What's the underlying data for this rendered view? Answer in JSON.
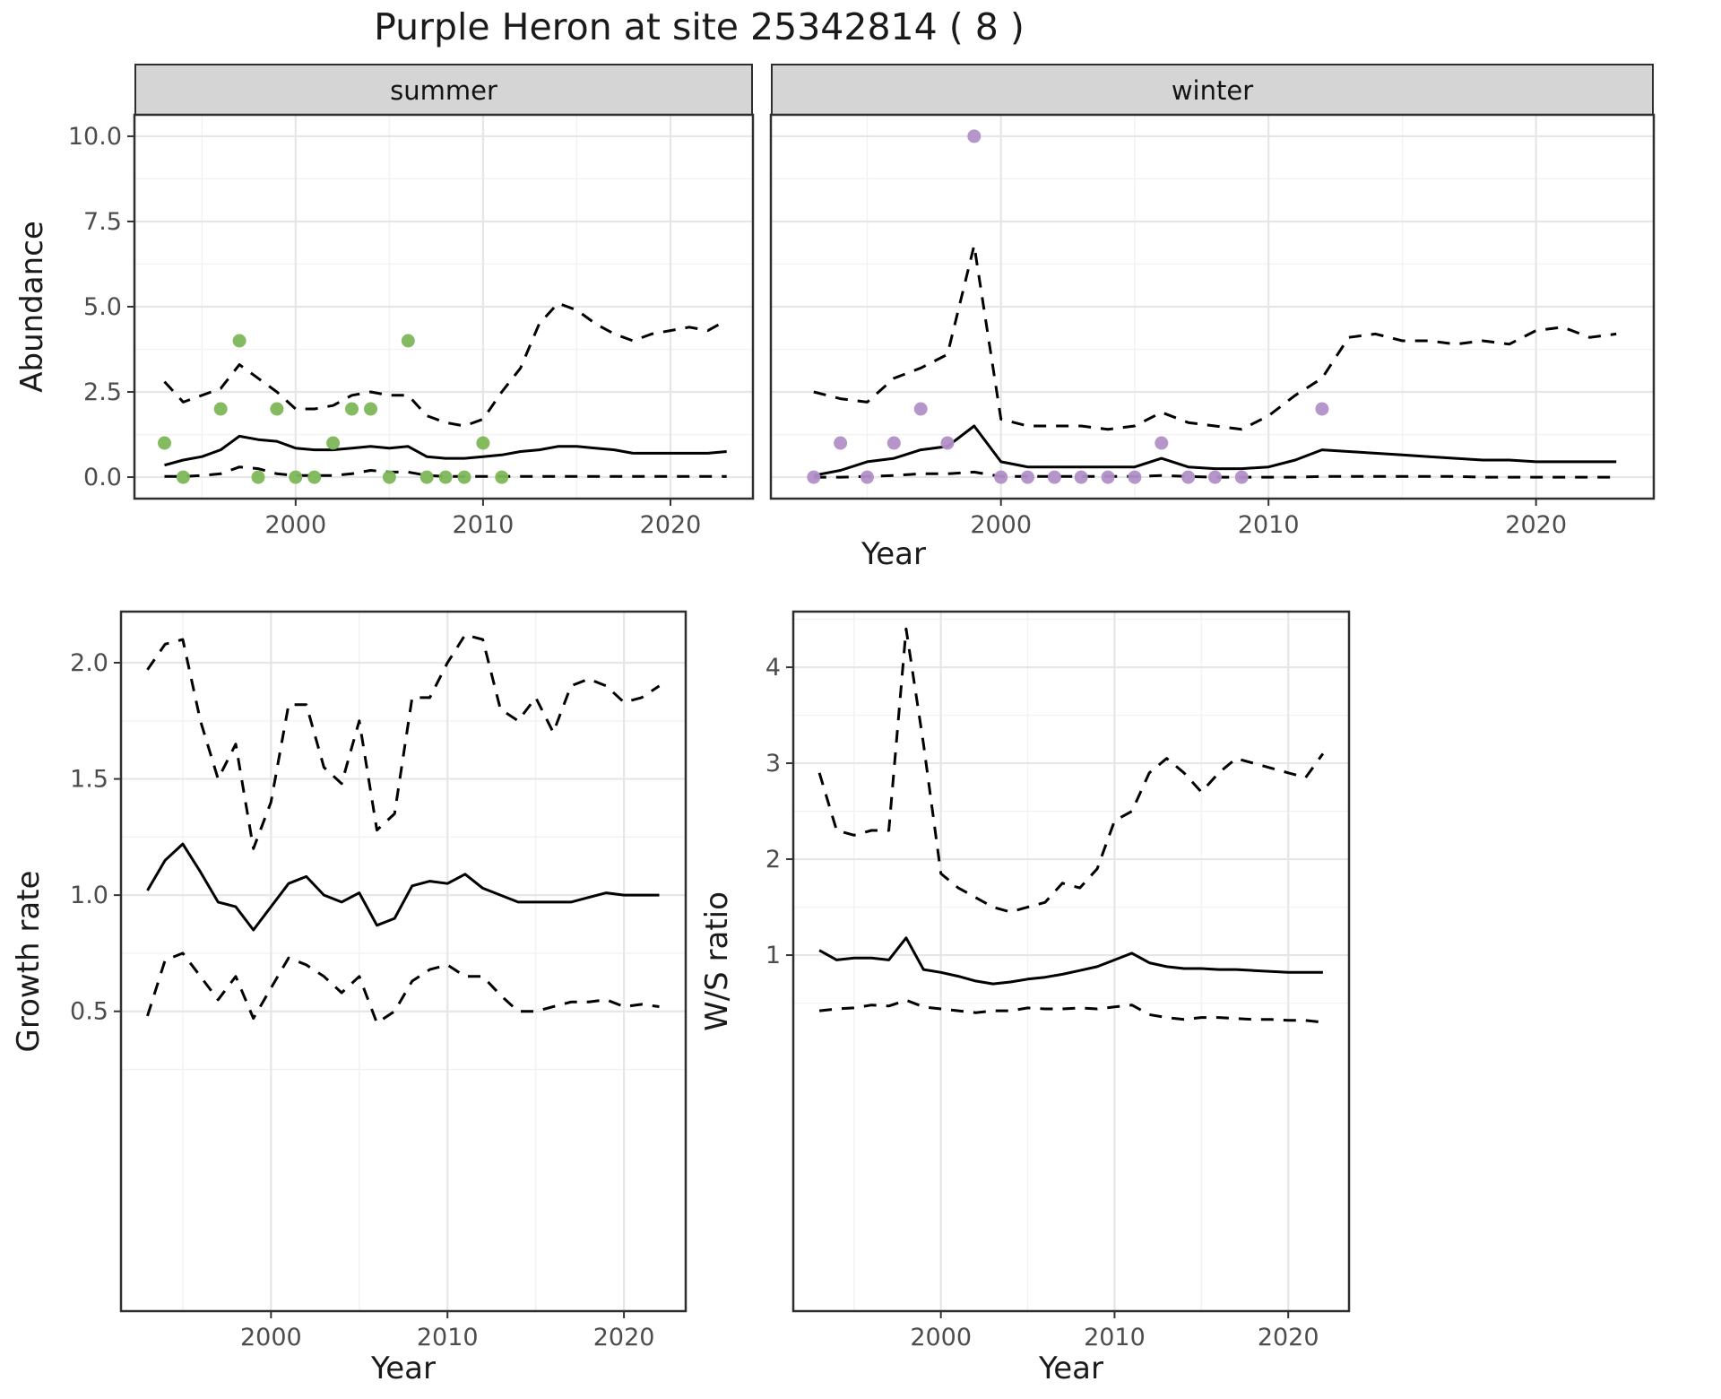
{
  "title": "Purple Heron at site 25342814 ( 8 )",
  "facets": [
    "summer",
    "winter"
  ],
  "axes": {
    "abundance_y": "Abundance",
    "growth_y": "Growth rate",
    "ratio_y": "W/S ratio",
    "year": "Year"
  },
  "colors": {
    "line": "#000000",
    "summer_points": "#7db757",
    "winter_points": "#b18fc7",
    "strip_bg": "#d5d5d5",
    "panel_border": "#2e2e2e",
    "grid_major": "#e6e6e6",
    "grid_minor": "#f2f2f2",
    "axis_text": "#4d4d4d"
  },
  "chart_data": [
    {
      "id": "abundance-summer",
      "type": "line",
      "facet": "summer",
      "xlabel": "Year",
      "ylabel": "Abundance",
      "xlim": [
        1991.4,
        2024.4
      ],
      "ylim": [
        -0.63,
        10.63
      ],
      "xticks": [
        2000,
        2010,
        2020
      ],
      "xtick_labels": [
        "2000",
        "2010",
        "2020"
      ],
      "yticks": [
        0,
        2.5,
        5,
        7.5,
        10
      ],
      "ytick_labels": [
        "0.0",
        "2.5",
        "5.0",
        "7.5",
        "10.0"
      ],
      "years": [
        1993,
        1994,
        1995,
        1996,
        1997,
        1998,
        1999,
        2000,
        2001,
        2002,
        2003,
        2004,
        2005,
        2006,
        2007,
        2008,
        2009,
        2010,
        2011,
        2012,
        2013,
        2014,
        2015,
        2016,
        2017,
        2018,
        2019,
        2020,
        2021,
        2022,
        2023
      ],
      "series": [
        {
          "name": "median",
          "style": "solid",
          "values": [
            0.35,
            0.5,
            0.6,
            0.8,
            1.2,
            1.1,
            1.05,
            0.85,
            0.8,
            0.8,
            0.85,
            0.9,
            0.85,
            0.9,
            0.6,
            0.55,
            0.55,
            0.6,
            0.65,
            0.75,
            0.8,
            0.9,
            0.9,
            0.85,
            0.8,
            0.7,
            0.7,
            0.7,
            0.7,
            0.7,
            0.75
          ]
        },
        {
          "name": "upper-ci",
          "style": "dashed",
          "values": [
            2.8,
            2.2,
            2.4,
            2.6,
            3.3,
            2.9,
            2.5,
            2.0,
            2.0,
            2.1,
            2.4,
            2.5,
            2.4,
            2.4,
            1.8,
            1.6,
            1.5,
            1.7,
            2.5,
            3.2,
            4.5,
            5.1,
            4.9,
            4.5,
            4.2,
            4.0,
            4.2,
            4.3,
            4.4,
            4.3,
            4.6
          ]
        },
        {
          "name": "lower-ci",
          "style": "dashed",
          "values": [
            0.02,
            0.02,
            0.05,
            0.1,
            0.3,
            0.25,
            0.1,
            0.05,
            0.05,
            0.05,
            0.1,
            0.2,
            0.15,
            0.15,
            0.05,
            0.02,
            0.02,
            0.02,
            0.02,
            0.02,
            0.02,
            0.02,
            0.02,
            0.02,
            0.02,
            0.02,
            0.02,
            0.02,
            0.02,
            0.02,
            0.02
          ]
        }
      ],
      "points": {
        "name": "observed-counts",
        "color": "#7db757",
        "x": [
          1993,
          1994,
          1996,
          1997,
          1998,
          1999,
          2000,
          2001,
          2002,
          2003,
          2004,
          2005,
          2006,
          2007,
          2008,
          2009,
          2010,
          2011
        ],
        "y": [
          1,
          0,
          2,
          4,
          0,
          2,
          0,
          0,
          1,
          2,
          2,
          0,
          4,
          0,
          0,
          0,
          1,
          0
        ]
      }
    },
    {
      "id": "abundance-winter",
      "type": "line",
      "facet": "winter",
      "xlabel": "Year",
      "ylabel": "Abundance",
      "xlim": [
        1991.4,
        2024.4
      ],
      "ylim": [
        -0.63,
        10.63
      ],
      "xticks": [
        2000,
        2010,
        2020
      ],
      "xtick_labels": [
        "2000",
        "2010",
        "2020"
      ],
      "yticks": [
        0,
        2.5,
        5,
        7.5,
        10
      ],
      "ytick_labels": [
        "0.0",
        "2.5",
        "5.0",
        "7.5",
        "10.0"
      ],
      "years": [
        1993,
        1994,
        1995,
        1996,
        1997,
        1998,
        1999,
        2000,
        2001,
        2002,
        2003,
        2004,
        2005,
        2006,
        2007,
        2008,
        2009,
        2010,
        2011,
        2012,
        2013,
        2014,
        2015,
        2016,
        2017,
        2018,
        2019,
        2020,
        2021,
        2022,
        2023
      ],
      "series": [
        {
          "name": "median",
          "style": "solid",
          "values": [
            0.05,
            0.2,
            0.45,
            0.55,
            0.8,
            0.9,
            1.5,
            0.45,
            0.3,
            0.3,
            0.3,
            0.3,
            0.3,
            0.55,
            0.3,
            0.25,
            0.25,
            0.3,
            0.5,
            0.8,
            0.75,
            0.7,
            0.65,
            0.6,
            0.55,
            0.5,
            0.5,
            0.45,
            0.45,
            0.45,
            0.45
          ]
        },
        {
          "name": "upper-ci",
          "style": "dashed",
          "values": [
            2.5,
            2.3,
            2.2,
            2.9,
            3.2,
            3.6,
            6.8,
            1.7,
            1.5,
            1.5,
            1.5,
            1.4,
            1.5,
            1.9,
            1.6,
            1.5,
            1.4,
            1.8,
            2.4,
            2.9,
            4.1,
            4.2,
            4.0,
            4.0,
            3.9,
            4.0,
            3.9,
            4.3,
            4.4,
            4.1,
            4.2
          ]
        },
        {
          "name": "lower-ci",
          "style": "dashed",
          "values": [
            0,
            0,
            0.02,
            0.05,
            0.1,
            0.1,
            0.15,
            0.02,
            0.02,
            0.02,
            0.02,
            0.02,
            0.02,
            0.05,
            0.02,
            0,
            0,
            0,
            0,
            0.02,
            0.02,
            0.02,
            0.02,
            0.02,
            0.02,
            0,
            0,
            0,
            0,
            0,
            0
          ]
        }
      ],
      "points": {
        "name": "observed-counts",
        "color": "#b18fc7",
        "x": [
          1993,
          1994,
          1995,
          1996,
          1997,
          1998,
          1999,
          2000,
          2001,
          2002,
          2003,
          2004,
          2005,
          2006,
          2007,
          2008,
          2009,
          2012
        ],
        "y": [
          0,
          1,
          0,
          1,
          2,
          1,
          10,
          0,
          0,
          0,
          0,
          0,
          0,
          1,
          0,
          0,
          0,
          2
        ]
      }
    },
    {
      "id": "growth-rate",
      "type": "line",
      "facet": "",
      "xlabel": "Year",
      "ylabel": "Growth rate",
      "xlim": [
        1991.5,
        2023.5
      ],
      "ylim": [
        -0.79,
        2.22
      ],
      "xticks": [
        2000,
        2010,
        2020
      ],
      "xtick_labels": [
        "2000",
        "2010",
        "2020"
      ],
      "yticks": [
        0.5,
        1.0,
        1.5,
        2.0
      ],
      "ytick_labels": [
        "0.5",
        "1.0",
        "1.5",
        "2.0"
      ],
      "years": [
        1993,
        1994,
        1995,
        1996,
        1997,
        1998,
        1999,
        2000,
        2001,
        2002,
        2003,
        2004,
        2005,
        2006,
        2007,
        2008,
        2009,
        2010,
        2011,
        2012,
        2013,
        2014,
        2015,
        2016,
        2017,
        2018,
        2019,
        2020,
        2021,
        2022
      ],
      "series": [
        {
          "name": "median",
          "style": "solid",
          "values": [
            1.02,
            1.15,
            1.22,
            1.1,
            0.97,
            0.95,
            0.85,
            0.95,
            1.05,
            1.08,
            1.0,
            0.97,
            1.01,
            0.87,
            0.9,
            1.04,
            1.06,
            1.05,
            1.09,
            1.03,
            1.0,
            0.97,
            0.97,
            0.97,
            0.97,
            0.99,
            1.01,
            1.0,
            1.0,
            1.0
          ]
        },
        {
          "name": "upper-ci",
          "style": "dashed",
          "values": [
            1.97,
            2.08,
            2.1,
            1.75,
            1.5,
            1.65,
            1.2,
            1.4,
            1.82,
            1.82,
            1.55,
            1.48,
            1.75,
            1.28,
            1.35,
            1.85,
            1.85,
            2.0,
            2.12,
            2.1,
            1.8,
            1.75,
            1.85,
            1.7,
            1.9,
            1.93,
            1.9,
            1.83,
            1.85,
            1.9
          ]
        },
        {
          "name": "lower-ci",
          "style": "dashed",
          "values": [
            0.48,
            0.72,
            0.75,
            0.65,
            0.55,
            0.65,
            0.47,
            0.6,
            0.73,
            0.7,
            0.65,
            0.58,
            0.65,
            0.45,
            0.5,
            0.63,
            0.68,
            0.7,
            0.65,
            0.65,
            0.57,
            0.5,
            0.5,
            0.52,
            0.54,
            0.54,
            0.55,
            0.52,
            0.53,
            0.52
          ]
        }
      ],
      "points": null
    },
    {
      "id": "ws-ratio",
      "type": "line",
      "facet": "",
      "xlabel": "Year",
      "ylabel": "W/S ratio",
      "xlim": [
        1991.5,
        2023.5
      ],
      "ylim": [
        -2.71,
        4.58
      ],
      "xticks": [
        2000,
        2010,
        2020
      ],
      "xtick_labels": [
        "2000",
        "2010",
        "2020"
      ],
      "yticks": [
        1,
        2,
        3,
        4
      ],
      "ytick_labels": [
        "1",
        "2",
        "3",
        "4"
      ],
      "years": [
        1993,
        1994,
        1995,
        1996,
        1997,
        1998,
        1999,
        2000,
        2001,
        2002,
        2003,
        2004,
        2005,
        2006,
        2007,
        2008,
        2009,
        2010,
        2011,
        2012,
        2013,
        2014,
        2015,
        2016,
        2017,
        2018,
        2019,
        2020,
        2021,
        2022
      ],
      "series": [
        {
          "name": "median",
          "style": "solid",
          "values": [
            1.05,
            0.95,
            0.97,
            0.97,
            0.95,
            1.18,
            0.85,
            0.82,
            0.78,
            0.73,
            0.7,
            0.72,
            0.75,
            0.77,
            0.8,
            0.84,
            0.88,
            0.95,
            1.02,
            0.92,
            0.88,
            0.86,
            0.86,
            0.85,
            0.85,
            0.84,
            0.83,
            0.82,
            0.82,
            0.82
          ]
        },
        {
          "name": "upper-ci",
          "style": "dashed",
          "values": [
            2.9,
            2.3,
            2.25,
            2.3,
            2.3,
            4.4,
            3.2,
            1.85,
            1.7,
            1.6,
            1.5,
            1.45,
            1.5,
            1.55,
            1.75,
            1.7,
            1.9,
            2.4,
            2.5,
            2.9,
            3.05,
            2.9,
            2.7,
            2.9,
            3.05,
            3.0,
            2.95,
            2.9,
            2.85,
            3.1
          ]
        },
        {
          "name": "lower-ci",
          "style": "dashed",
          "values": [
            0.42,
            0.44,
            0.45,
            0.48,
            0.47,
            0.53,
            0.46,
            0.44,
            0.42,
            0.4,
            0.42,
            0.42,
            0.45,
            0.44,
            0.44,
            0.45,
            0.44,
            0.46,
            0.48,
            0.38,
            0.35,
            0.33,
            0.35,
            0.35,
            0.34,
            0.33,
            0.33,
            0.32,
            0.32,
            0.3
          ]
        }
      ],
      "points": null
    }
  ]
}
